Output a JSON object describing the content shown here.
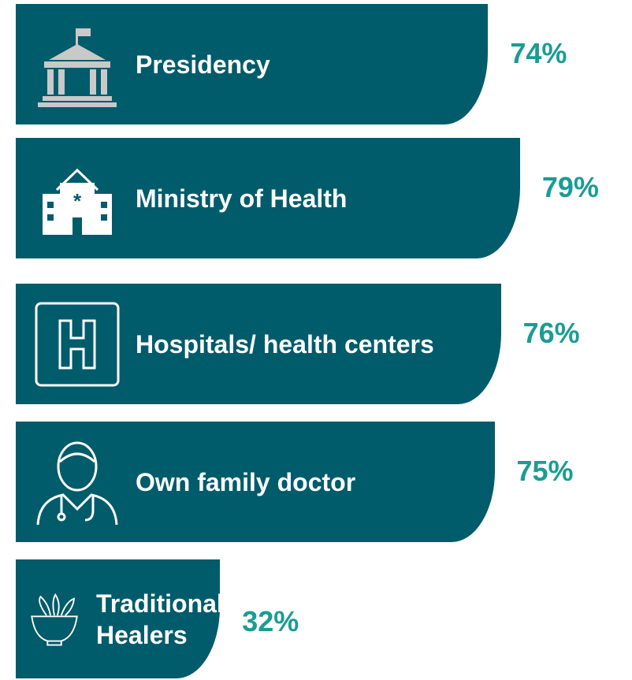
{
  "chart_data": {
    "type": "bar",
    "orientation": "horizontal",
    "categories": [
      "Presidency",
      "Ministry of Health",
      "Hospitals/ health centers",
      "Own family doctor",
      "Traditional Healers"
    ],
    "values": [
      74,
      79,
      76,
      75,
      32
    ],
    "value_labels": [
      "74%",
      "79%",
      "76%",
      "75%",
      "32%"
    ],
    "color": "#005b6b",
    "label_color": "#1a9c94"
  }
}
